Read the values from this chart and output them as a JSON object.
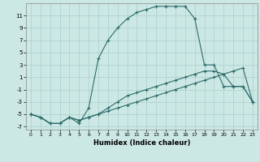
{
  "xlabel": "Humidex (Indice chaleur)",
  "background_color": "#cce8e4",
  "grid_color": "#aacfcc",
  "line_color": "#2d6b6b",
  "xlim": [
    -0.5,
    23.5
  ],
  "ylim": [
    -7.5,
    13
  ],
  "xticks": [
    0,
    1,
    2,
    3,
    4,
    5,
    6,
    7,
    8,
    9,
    10,
    11,
    12,
    13,
    14,
    15,
    16,
    17,
    18,
    19,
    20,
    21,
    22,
    23
  ],
  "yticks": [
    -7,
    -5,
    -3,
    -1,
    1,
    3,
    5,
    7,
    9,
    11
  ],
  "c1x": [
    0,
    1,
    2,
    3,
    4,
    5,
    6,
    7,
    8,
    9,
    10,
    11,
    12,
    13,
    14,
    15,
    16,
    17,
    18,
    19,
    20,
    21,
    22,
    23
  ],
  "c1y": [
    -5,
    -5.5,
    -6.5,
    -6.5,
    -5.5,
    -6,
    -5.5,
    -5,
    -4.5,
    -4,
    -3.5,
    -3,
    -2.5,
    -2,
    -1.5,
    -1,
    -0.5,
    0,
    0.5,
    1,
    1.5,
    2,
    2.5,
    -3
  ],
  "c2x": [
    0,
    1,
    2,
    3,
    4,
    5,
    6,
    7,
    8,
    9,
    10,
    11,
    12,
    13,
    14,
    15,
    16,
    17,
    18,
    19,
    20,
    21,
    22,
    23
  ],
  "c2y": [
    -5,
    -5.5,
    -6.5,
    -6.5,
    -5.5,
    -6,
    -5.5,
    -5,
    -4,
    -3,
    -2,
    -1.5,
    -1,
    -0.5,
    0,
    0.5,
    1,
    1.5,
    2,
    2,
    1.5,
    -0.5,
    -0.5,
    -3
  ],
  "c3x": [
    0,
    1,
    2,
    3,
    4,
    5,
    6,
    7,
    8,
    9,
    10,
    11,
    12,
    13,
    14,
    15,
    16,
    17,
    18,
    19,
    20,
    21,
    22,
    23
  ],
  "c3y": [
    -5,
    -5.5,
    -6.5,
    -6.5,
    -5.5,
    -6.5,
    -4,
    4,
    7,
    9,
    10.5,
    11.5,
    12,
    12.5,
    12.5,
    12.5,
    12.5,
    10.5,
    3,
    3,
    -0.5,
    -0.5,
    -0.5,
    -3
  ]
}
